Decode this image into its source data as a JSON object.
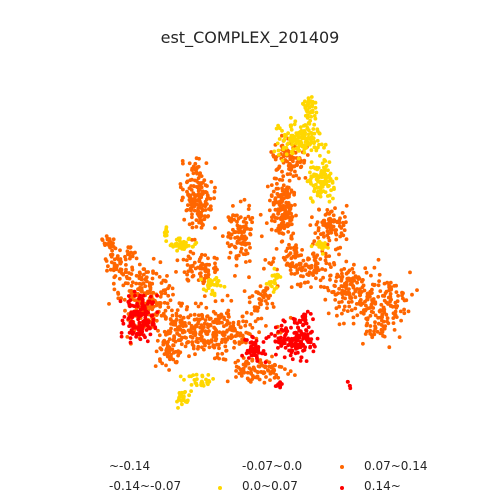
{
  "map": {
    "title": "est_COMPLEX_201409",
    "legend": {
      "placement": "bottom",
      "entries": [
        {
          "label": "~-0.14",
          "color": ""
        },
        {
          "label": "-0.14~-0.07",
          "color": ""
        },
        {
          "label": "-0.07~0.0",
          "color": ""
        },
        {
          "label": "0.0~0.07",
          "color": "#ffd700"
        },
        {
          "label": "0.07~0.14",
          "color": "#ff6600"
        },
        {
          "label": "0.14~",
          "color": "#ff0000"
        }
      ]
    },
    "colors": {
      "class_0_0_0_07": "#ffd700",
      "class_0_07_0_14": "#ff6600",
      "class_0_14_plus": "#ff0000"
    }
  }
}
